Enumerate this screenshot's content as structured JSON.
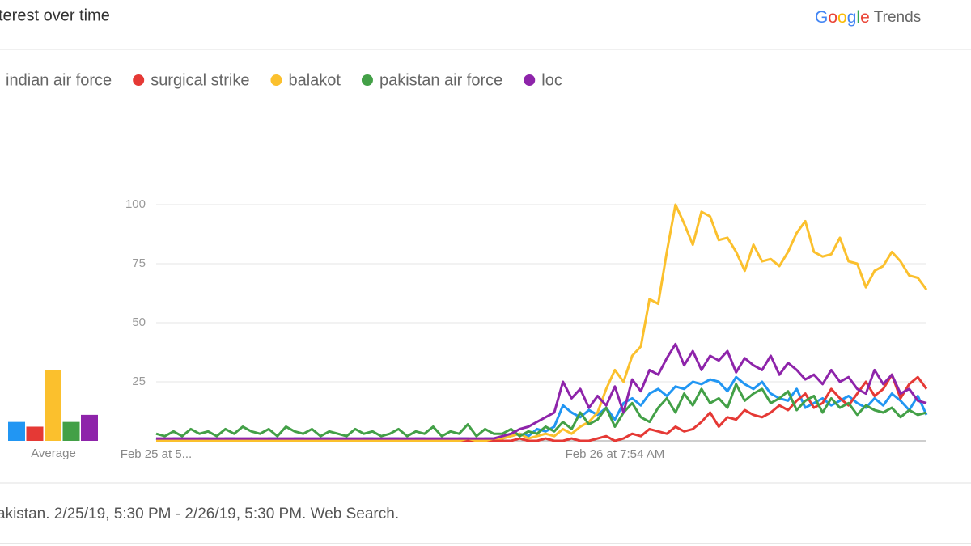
{
  "chart_data": {
    "type": "line",
    "title": "terest over time",
    "brand": {
      "logo": "Google",
      "product": "Trends"
    },
    "footer": "akistan. 2/25/19, 5:30 PM - 2/26/19, 5:30 PM. Web Search.",
    "average_label": "Average",
    "ylim": [
      0,
      100
    ],
    "yticks": [
      25,
      50,
      75,
      100
    ],
    "grid": true,
    "categories": [
      "Feb 25 at 5...",
      null,
      null,
      null,
      null,
      null,
      null,
      null,
      null,
      null,
      null,
      null,
      null,
      null,
      null,
      null,
      null,
      null,
      null,
      null,
      null,
      null,
      null,
      null,
      null,
      null,
      null,
      null,
      null,
      null,
      null,
      null,
      null,
      null,
      null,
      null,
      null,
      null,
      null,
      null,
      null,
      null,
      null,
      null,
      null,
      null,
      null,
      null,
      null,
      null,
      null,
      null,
      null,
      "Feb 26 at 7:54 AM",
      null,
      null,
      null,
      null,
      null,
      null,
      null,
      null,
      null,
      null,
      null,
      null,
      null,
      null,
      null,
      null,
      null,
      null,
      null,
      null,
      null,
      null,
      null,
      null,
      null,
      null,
      null,
      null,
      null,
      null,
      null,
      null,
      null,
      null,
      null,
      null
    ],
    "series": [
      {
        "name": "indian air force",
        "color": "#2196f3",
        "average": 8,
        "values": [
          1,
          0,
          1,
          1,
          0,
          1,
          1,
          0,
          1,
          1,
          0,
          1,
          0,
          1,
          1,
          0,
          1,
          1,
          0,
          1,
          1,
          0,
          1,
          0,
          1,
          1,
          0,
          1,
          1,
          0,
          1,
          1,
          0,
          1,
          0,
          1,
          1,
          0,
          1,
          1,
          1,
          2,
          3,
          2,
          5,
          4,
          6,
          15,
          12,
          10,
          13,
          11,
          14,
          9,
          16,
          18,
          15,
          20,
          22,
          19,
          23,
          22,
          25,
          24,
          26,
          25,
          21,
          27,
          24,
          22,
          25,
          20,
          18,
          17,
          22,
          14,
          16,
          18,
          15,
          17,
          19,
          16,
          14,
          18,
          15,
          20,
          17,
          13,
          19,
          11
        ]
      },
      {
        "name": "surgical strike",
        "color": "#e53935",
        "average": 6,
        "values": [
          0,
          0,
          0,
          0,
          0,
          0,
          0,
          0,
          0,
          0,
          0,
          0,
          0,
          0,
          0,
          0,
          0,
          0,
          0,
          0,
          0,
          0,
          0,
          0,
          0,
          0,
          0,
          0,
          0,
          0,
          0,
          0,
          0,
          0,
          0,
          0,
          0,
          0,
          0,
          0,
          0,
          0,
          1,
          0,
          0,
          1,
          0,
          0,
          1,
          0,
          0,
          1,
          2,
          0,
          1,
          3,
          2,
          5,
          4,
          3,
          6,
          4,
          5,
          8,
          12,
          6,
          10,
          9,
          13,
          11,
          10,
          12,
          15,
          13,
          17,
          20,
          14,
          16,
          22,
          18,
          15,
          20,
          25,
          19,
          22,
          28,
          18,
          24,
          27,
          22
        ]
      },
      {
        "name": "balakot",
        "color": "#fbc02d",
        "average": 30,
        "values": [
          0,
          0,
          0,
          0,
          0,
          0,
          0,
          0,
          0,
          0,
          0,
          0,
          0,
          0,
          0,
          0,
          0,
          0,
          0,
          0,
          0,
          0,
          0,
          0,
          0,
          0,
          0,
          0,
          0,
          0,
          0,
          0,
          0,
          0,
          0,
          0,
          1,
          0,
          0,
          1,
          1,
          2,
          3,
          1,
          2,
          3,
          2,
          5,
          3,
          6,
          8,
          12,
          22,
          30,
          25,
          36,
          40,
          60,
          58,
          80,
          100,
          92,
          83,
          97,
          95,
          85,
          86,
          80,
          72,
          83,
          76,
          77,
          74,
          80,
          88,
          93,
          80,
          78,
          79,
          86,
          76,
          75,
          65,
          72,
          74,
          80,
          76,
          70,
          69,
          64
        ]
      },
      {
        "name": "pakistan air force",
        "color": "#43a047",
        "average": 8,
        "values": [
          3,
          2,
          4,
          2,
          5,
          3,
          4,
          2,
          5,
          3,
          6,
          4,
          3,
          5,
          2,
          6,
          4,
          3,
          5,
          2,
          4,
          3,
          2,
          5,
          3,
          4,
          2,
          3,
          5,
          2,
          4,
          3,
          6,
          2,
          4,
          3,
          7,
          2,
          5,
          3,
          3,
          5,
          2,
          4,
          3,
          6,
          4,
          8,
          5,
          12,
          7,
          9,
          14,
          6,
          12,
          16,
          10,
          8,
          14,
          18,
          12,
          20,
          15,
          22,
          16,
          18,
          14,
          24,
          17,
          20,
          22,
          16,
          18,
          21,
          13,
          17,
          19,
          12,
          18,
          14,
          16,
          11,
          15,
          13,
          12,
          14,
          10,
          13,
          11,
          12
        ]
      },
      {
        "name": "loc",
        "color": "#8e24aa",
        "average": 11,
        "values": [
          1,
          1,
          1,
          1,
          1,
          1,
          1,
          1,
          1,
          1,
          1,
          1,
          1,
          1,
          1,
          1,
          1,
          1,
          1,
          1,
          1,
          1,
          1,
          1,
          1,
          1,
          1,
          1,
          1,
          1,
          1,
          1,
          1,
          1,
          1,
          1,
          1,
          1,
          1,
          1,
          2,
          3,
          5,
          6,
          8,
          10,
          12,
          25,
          18,
          22,
          14,
          19,
          15,
          23,
          12,
          26,
          21,
          30,
          28,
          35,
          41,
          32,
          38,
          30,
          36,
          34,
          38,
          29,
          35,
          32,
          30,
          36,
          28,
          33,
          30,
          26,
          28,
          24,
          30,
          25,
          27,
          22,
          20,
          30,
          24,
          28,
          20,
          22,
          17,
          16
        ]
      }
    ]
  }
}
